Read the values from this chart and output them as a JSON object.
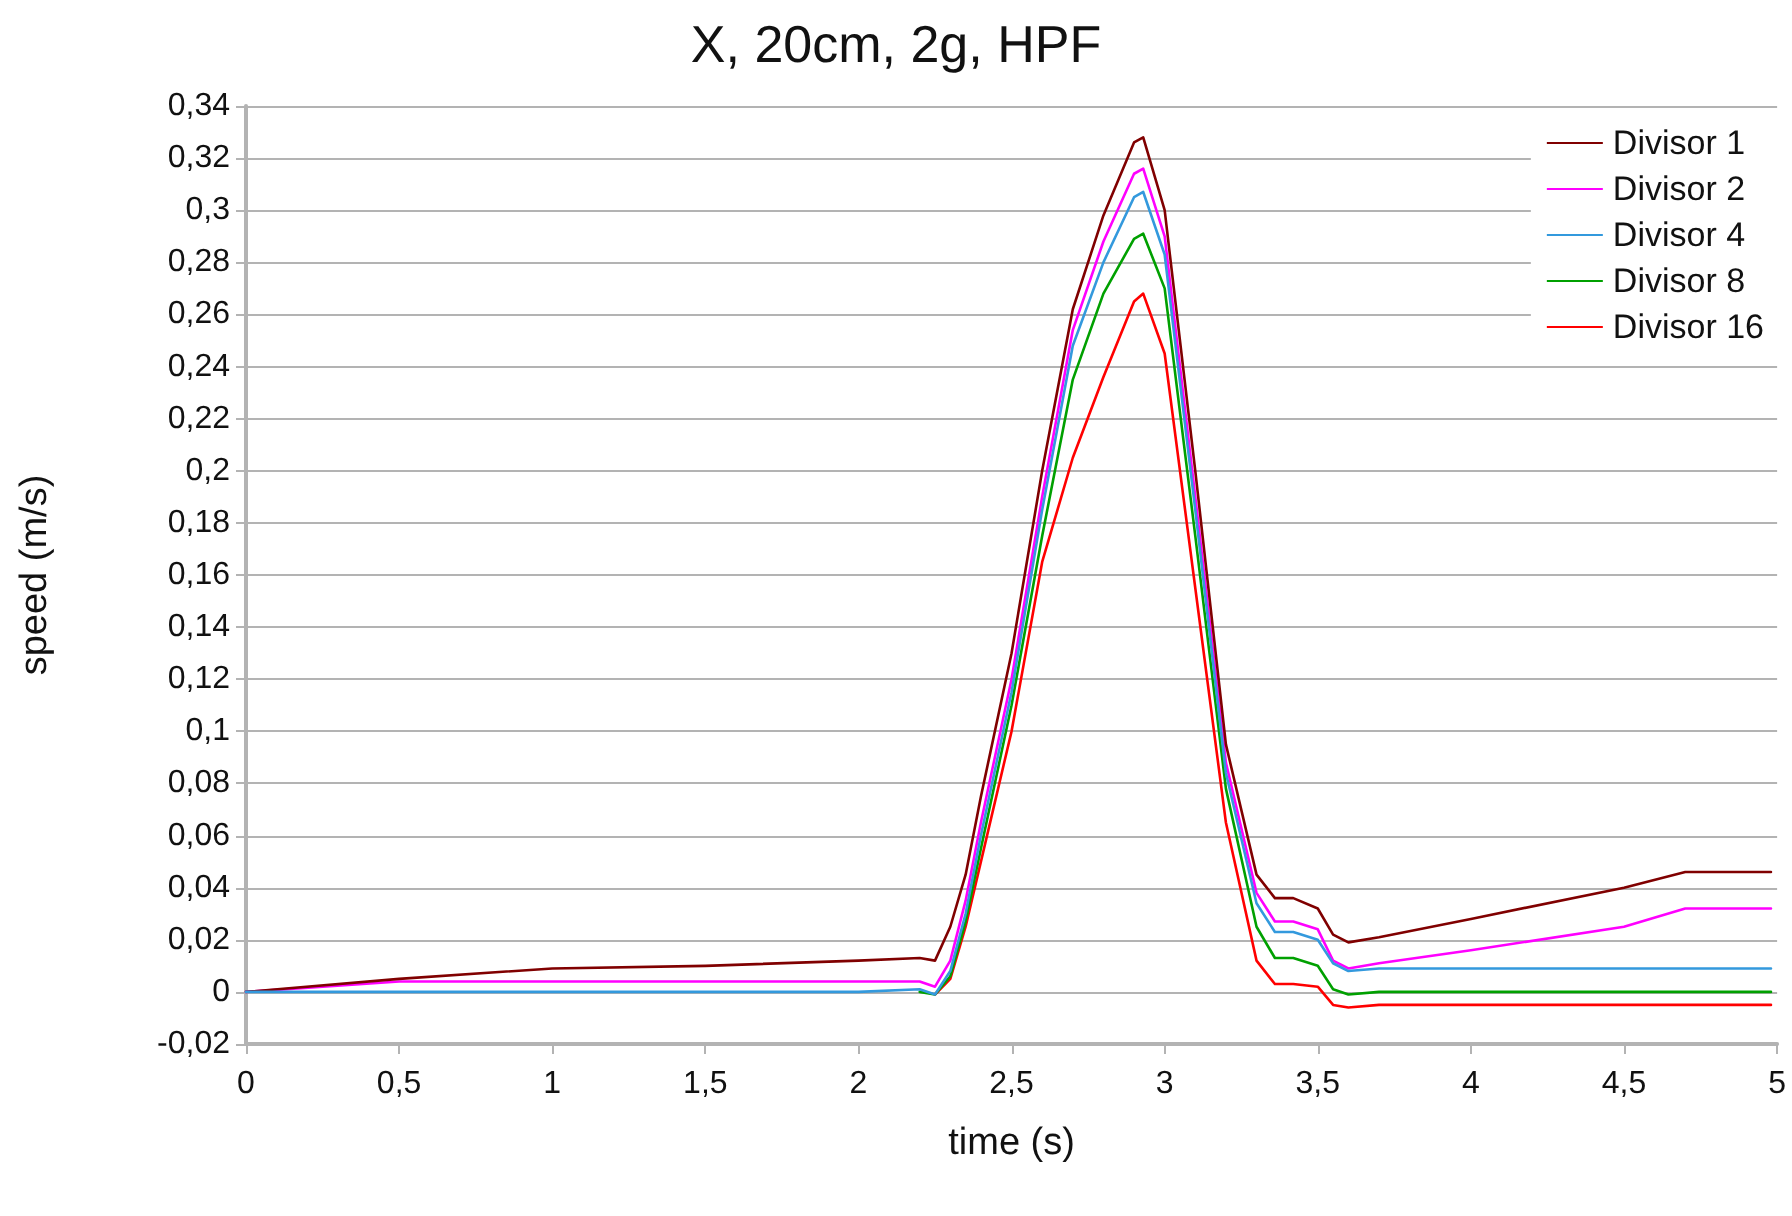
{
  "chart_data": {
    "type": "line",
    "title": "X, 20cm, 2g, HPF",
    "xlabel": "time (s)",
    "ylabel": "speed (m/s)",
    "x": [
      0,
      0.5,
      1,
      1.5,
      2,
      2.2,
      2.25,
      2.3,
      2.35,
      2.4,
      2.5,
      2.6,
      2.7,
      2.8,
      2.9,
      2.93,
      3.0,
      3.1,
      3.2,
      3.3,
      3.36,
      3.42,
      3.5,
      3.55,
      3.6,
      3.7,
      4,
      4.5,
      4.7,
      4.98
    ],
    "series": [
      {
        "name": "Divisor 1",
        "color": "#800000",
        "values": [
          0,
          0.005,
          0.009,
          0.01,
          0.012,
          0.013,
          0.012,
          0.025,
          0.045,
          0.075,
          0.13,
          0.2,
          0.262,
          0.298,
          0.326,
          0.328,
          0.3,
          0.2,
          0.095,
          0.045,
          0.036,
          0.036,
          0.032,
          0.022,
          0.019,
          0.021,
          0.028,
          0.04,
          0.046,
          0.046
        ]
      },
      {
        "name": "Divisor 2",
        "color": "#ff00ff",
        "values": [
          0,
          0.004,
          0.004,
          0.004,
          0.004,
          0.004,
          0.002,
          0.012,
          0.035,
          0.065,
          0.12,
          0.19,
          0.254,
          0.288,
          0.314,
          0.316,
          0.29,
          0.19,
          0.088,
          0.038,
          0.027,
          0.027,
          0.024,
          0.012,
          0.009,
          0.011,
          0.016,
          0.025,
          0.032,
          0.032
        ]
      },
      {
        "name": "Divisor 4",
        "color": "#3399dd",
        "values": [
          0,
          0,
          0,
          0,
          0,
          0.001,
          -0.001,
          0.008,
          0.03,
          0.06,
          0.115,
          0.185,
          0.248,
          0.28,
          0.305,
          0.307,
          0.283,
          0.185,
          0.084,
          0.034,
          0.023,
          0.023,
          0.02,
          0.011,
          0.008,
          0.009,
          0.009,
          0.009,
          0.009,
          0.009
        ]
      },
      {
        "name": "Divisor 8",
        "color": "#00a000",
        "values": [
          null,
          null,
          null,
          null,
          null,
          0,
          -0.001,
          0.006,
          0.027,
          0.055,
          0.11,
          0.175,
          0.235,
          0.268,
          0.289,
          0.291,
          0.27,
          0.175,
          0.078,
          0.025,
          0.013,
          0.013,
          0.01,
          0.001,
          -0.001,
          0,
          0,
          0,
          0,
          0
        ]
      },
      {
        "name": "Divisor 16",
        "color": "#ff0000",
        "values": [
          null,
          null,
          null,
          null,
          null,
          null,
          -0.001,
          0.005,
          0.025,
          0.05,
          0.1,
          0.165,
          0.205,
          0.236,
          0.265,
          0.268,
          0.245,
          0.155,
          0.065,
          0.012,
          0.003,
          0.003,
          0.002,
          -0.005,
          -0.006,
          -0.005,
          -0.005,
          -0.005,
          -0.005,
          -0.005
        ]
      }
    ],
    "xlim": [
      0,
      5
    ],
    "xticks": [
      0,
      {
        "value": 0.5,
        "label": "0,5"
      },
      1,
      {
        "value": 1.5,
        "label": "1,5"
      },
      2,
      {
        "value": 2.5,
        "label": "2,5"
      },
      3,
      {
        "value": 3.5,
        "label": "3,5"
      },
      4,
      {
        "value": 4.5,
        "label": "4,5"
      },
      5
    ],
    "ylim": [
      -0.02,
      0.34
    ],
    "yticks": [
      {
        "value": -0.02,
        "label": "-0,02"
      },
      0,
      {
        "value": 0.02,
        "label": "0,02"
      },
      {
        "value": 0.04,
        "label": "0,04"
      },
      {
        "value": 0.06,
        "label": "0,06"
      },
      {
        "value": 0.08,
        "label": "0,08"
      },
      {
        "value": 0.1,
        "label": "0,1"
      },
      {
        "value": 0.12,
        "label": "0,12"
      },
      {
        "value": 0.14,
        "label": "0,14"
      },
      {
        "value": 0.16,
        "label": "0,16"
      },
      {
        "value": 0.18,
        "label": "0,18"
      },
      {
        "value": 0.2,
        "label": "0,2"
      },
      {
        "value": 0.22,
        "label": "0,22"
      },
      {
        "value": 0.24,
        "label": "0,24"
      },
      {
        "value": 0.26,
        "label": "0,26"
      },
      {
        "value": 0.28,
        "label": "0,28"
      },
      {
        "value": 0.3,
        "label": "0,3"
      },
      {
        "value": 0.32,
        "label": "0,32"
      },
      {
        "value": 0.34,
        "label": "0,34"
      }
    ],
    "grid": "y",
    "legend": "top right",
    "marker": "none",
    "line_style": "solid"
  }
}
